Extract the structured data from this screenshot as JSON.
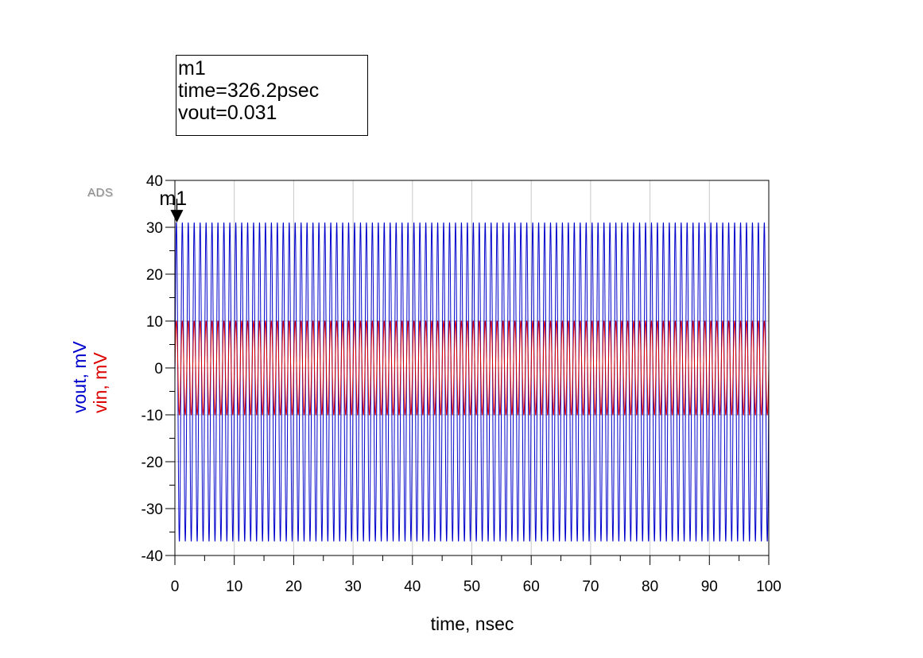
{
  "marker": {
    "name": "m1",
    "line_time": "time=326.2psec",
    "line_value": "vout=0.031",
    "time_nsec": 0.3262,
    "value_mV": 31
  },
  "logo": "ADS",
  "chart_data": {
    "type": "line",
    "title": "",
    "xlabel": "time, nsec",
    "ylabel_series": [
      "vout, mV",
      "vin, mV"
    ],
    "xlim": [
      0,
      100
    ],
    "ylim": [
      -40,
      40
    ],
    "x_ticks": [
      0,
      10,
      20,
      30,
      40,
      50,
      60,
      70,
      80,
      90,
      100
    ],
    "y_ticks": [
      40,
      30,
      20,
      10,
      0,
      -10,
      -20,
      -30,
      -40
    ],
    "grid": true,
    "series": [
      {
        "name": "vout, mV",
        "color": "#0000cc",
        "waveform": "sine",
        "max": 31,
        "min": -37,
        "cycles": 100
      },
      {
        "name": "vin, mV",
        "color": "#dd0000",
        "waveform": "sine",
        "max": 10,
        "min": -10,
        "cycles": 100
      }
    ]
  }
}
